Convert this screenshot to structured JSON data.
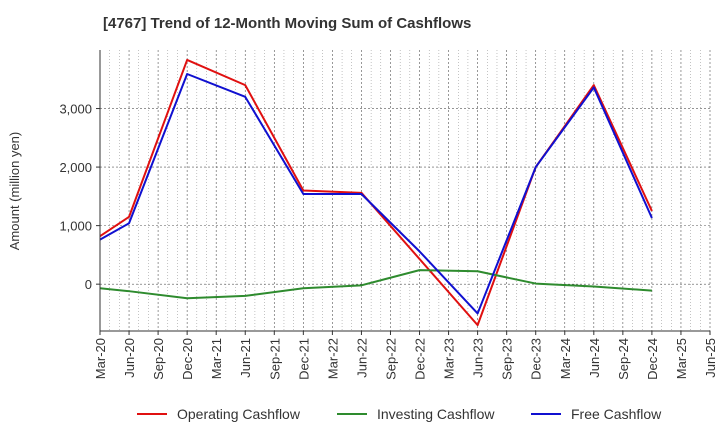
{
  "chart_data": {
    "type": "line",
    "title": "[4767]  Trend of 12-Month Moving Sum of Cashflows",
    "ylabel": "Amount (million yen)",
    "xlabel": "",
    "categories": [
      "Mar-20",
      "Jun-20",
      "Sep-20",
      "Dec-20",
      "Mar-21",
      "Jun-21",
      "Sep-21",
      "Dec-21",
      "Mar-22",
      "Jun-22",
      "Sep-22",
      "Dec-22",
      "Mar-23",
      "Jun-23",
      "Sep-23",
      "Dec-23",
      "Mar-24",
      "Jun-24",
      "Sep-24",
      "Dec-24",
      "Mar-25",
      "Jun-25"
    ],
    "yticks": [
      0,
      1000,
      2000,
      3000
    ],
    "ytick_labels": [
      "0",
      "1,000",
      "2,000",
      "3,000"
    ],
    "ylim": [
      -800,
      4000
    ],
    "grid": true,
    "legend_position": "bottom",
    "series": [
      {
        "name": "Operating Cashflow",
        "color": "#e01010",
        "values": [
          820,
          1150,
          null,
          3830,
          null,
          3400,
          null,
          1600,
          null,
          1560,
          null,
          null,
          null,
          -700,
          null,
          2000,
          null,
          3400,
          null,
          1250,
          null,
          null
        ]
      },
      {
        "name": "Investing Cashflow",
        "color": "#2e8b2e",
        "values": [
          -70,
          -120,
          null,
          -240,
          null,
          -200,
          null,
          -70,
          null,
          -20,
          null,
          240,
          null,
          220,
          null,
          10,
          null,
          -40,
          null,
          -110,
          null,
          null
        ]
      },
      {
        "name": "Free Cashflow",
        "color": "#1010d0",
        "values": [
          760,
          1040,
          null,
          3590,
          null,
          3200,
          null,
          1540,
          null,
          1540,
          null,
          560,
          null,
          -500,
          null,
          2000,
          null,
          3360,
          null,
          1130,
          null,
          null
        ]
      }
    ]
  }
}
